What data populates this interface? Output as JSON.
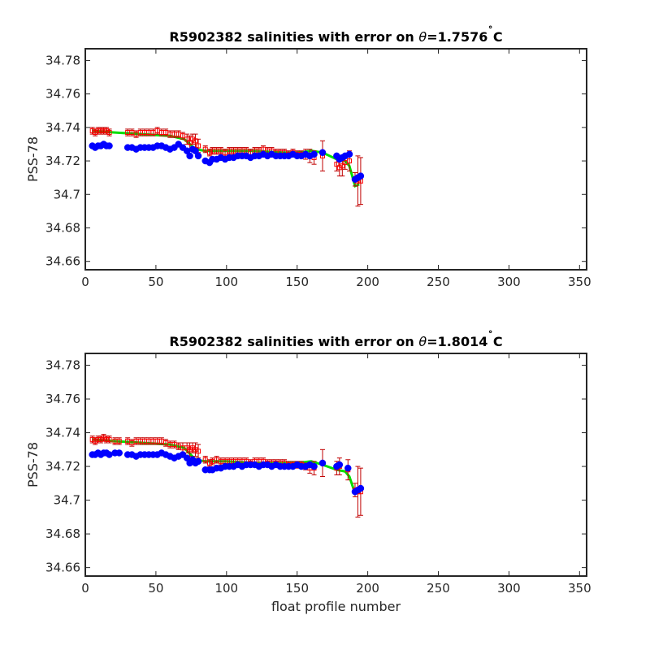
{
  "chart_data": [
    {
      "type": "scatter",
      "title": "R5902382 salinities with error on θ=1.7576˚C",
      "title_parts": {
        "prefix": "R5902382 salinities with error on ",
        "theta": "θ",
        "value": "=1.7576",
        "degree": "˚",
        "unit": "C"
      },
      "xlabel": "",
      "ylabel": "PSS-78",
      "xlim": [
        0,
        355
      ],
      "ylim": [
        34.655,
        34.787
      ],
      "xticks": [
        "0",
        "50",
        "100",
        "150",
        "200",
        "250",
        "300",
        "350"
      ],
      "yticks": [
        "34.66",
        "34.68",
        "34.7",
        "34.72",
        "34.74",
        "34.76",
        "34.78"
      ],
      "grid": false,
      "colors": {
        "calibrated": "#ff0000",
        "error_bar": "#c00000",
        "mapped": "#00e000",
        "float": "#0000ff"
      },
      "series": [
        {
          "role": "float-salinity",
          "x": [
            5,
            7,
            9,
            11,
            13,
            15,
            17,
            30,
            33,
            36,
            39,
            42,
            45,
            48,
            51,
            54,
            57,
            60,
            63,
            66,
            69,
            72,
            74,
            76,
            78,
            80,
            85,
            88,
            90,
            93,
            96,
            99,
            102,
            105,
            108,
            111,
            114,
            117,
            120,
            123,
            126,
            129,
            132,
            135,
            138,
            141,
            144,
            147,
            150,
            153,
            156,
            159,
            162,
            168,
            178,
            180,
            182,
            184,
            187,
            191,
            193,
            195
          ],
          "y": [
            34.729,
            34.728,
            34.729,
            34.729,
            34.73,
            34.729,
            34.729,
            34.728,
            34.728,
            34.727,
            34.728,
            34.728,
            34.728,
            34.728,
            34.729,
            34.729,
            34.728,
            34.727,
            34.728,
            34.73,
            34.728,
            34.726,
            34.723,
            34.727,
            34.726,
            34.723,
            34.72,
            34.719,
            34.721,
            34.721,
            34.722,
            34.721,
            34.722,
            34.722,
            34.723,
            34.723,
            34.723,
            34.722,
            34.723,
            34.723,
            34.724,
            34.723,
            34.724,
            34.723,
            34.723,
            34.723,
            34.723,
            34.724,
            34.723,
            34.723,
            34.724,
            34.723,
            34.724,
            34.725,
            34.723,
            34.721,
            34.722,
            34.723,
            34.724,
            34.709,
            34.71,
            34.711
          ]
        },
        {
          "role": "calibrated-salinity",
          "x": [
            5,
            7,
            9,
            11,
            13,
            15,
            17,
            30,
            33,
            36,
            39,
            42,
            45,
            48,
            51,
            54,
            57,
            60,
            63,
            66,
            69,
            72,
            74,
            76,
            78,
            80,
            85,
            88,
            90,
            93,
            96,
            99,
            102,
            105,
            108,
            111,
            114,
            117,
            120,
            123,
            126,
            129,
            132,
            135,
            138,
            141,
            144,
            147,
            150,
            153,
            156,
            159,
            162,
            168,
            178,
            180,
            182,
            184,
            187,
            191,
            193,
            195
          ],
          "y": [
            34.738,
            34.737,
            34.738,
            34.738,
            34.738,
            34.738,
            34.737,
            34.737,
            34.737,
            34.736,
            34.737,
            34.737,
            34.737,
            34.737,
            34.738,
            34.737,
            34.737,
            34.736,
            34.736,
            34.736,
            34.735,
            34.733,
            34.731,
            34.733,
            34.732,
            34.729,
            34.727,
            34.725,
            34.726,
            34.726,
            34.726,
            34.725,
            34.726,
            34.726,
            34.726,
            34.726,
            34.726,
            34.725,
            34.726,
            34.726,
            34.727,
            34.726,
            34.726,
            34.725,
            34.725,
            34.725,
            34.724,
            34.725,
            34.724,
            34.724,
            34.724,
            34.723,
            34.722,
            34.723,
            34.718,
            34.716,
            34.717,
            34.719,
            34.72,
            34.709,
            34.708,
            34.708
          ],
          "err": [
            0.002,
            0.002,
            0.002,
            0.002,
            0.002,
            0.002,
            0.002,
            0.002,
            0.002,
            0.002,
            0.002,
            0.002,
            0.002,
            0.002,
            0.002,
            0.002,
            0.002,
            0.002,
            0.002,
            0.002,
            0.002,
            0.003,
            0.004,
            0.003,
            0.004,
            0.004,
            0.002,
            0.002,
            0.002,
            0.002,
            0.002,
            0.002,
            0.002,
            0.002,
            0.002,
            0.002,
            0.002,
            0.002,
            0.002,
            0.002,
            0.002,
            0.002,
            0.002,
            0.002,
            0.002,
            0.002,
            0.002,
            0.002,
            0.002,
            0.002,
            0.003,
            0.004,
            0.004,
            0.009,
            0.004,
            0.005,
            0.006,
            0.004,
            0.006,
            0.004,
            0.015,
            0.014
          ]
        },
        {
          "role": "mapped-salinity",
          "x": [
            5,
            20,
            40,
            60,
            70,
            78,
            85,
            100,
            120,
            140,
            150,
            160,
            168,
            178,
            184,
            187,
            191,
            194
          ],
          "y": [
            34.738,
            34.737,
            34.736,
            34.735,
            34.733,
            34.727,
            34.726,
            34.726,
            34.726,
            34.725,
            34.725,
            34.726,
            34.725,
            34.721,
            34.72,
            34.717,
            34.705,
            34.706
          ]
        }
      ]
    },
    {
      "type": "scatter",
      "title": "R5902382 salinities with error on θ=1.8014˚C",
      "title_parts": {
        "prefix": "R5902382 salinities with error on ",
        "theta": "θ",
        "value": "=1.8014",
        "degree": "˚",
        "unit": "C"
      },
      "xlabel": "float profile number",
      "ylabel": "PSS-78",
      "xlim": [
        0,
        355
      ],
      "ylim": [
        34.655,
        34.787
      ],
      "xticks": [
        "0",
        "50",
        "100",
        "150",
        "200",
        "250",
        "300",
        "350"
      ],
      "yticks": [
        "34.66",
        "34.68",
        "34.7",
        "34.72",
        "34.74",
        "34.76",
        "34.78"
      ],
      "grid": false,
      "colors": {
        "calibrated": "#ff0000",
        "error_bar": "#c00000",
        "mapped": "#00e000",
        "float": "#0000ff"
      },
      "series": [
        {
          "role": "float-salinity",
          "x": [
            5,
            7,
            9,
            11,
            13,
            15,
            17,
            21,
            24,
            30,
            33,
            36,
            39,
            42,
            45,
            48,
            51,
            54,
            57,
            60,
            63,
            66,
            69,
            72,
            74,
            76,
            78,
            80,
            85,
            88,
            90,
            93,
            96,
            99,
            102,
            105,
            108,
            111,
            114,
            117,
            120,
            123,
            126,
            129,
            132,
            135,
            138,
            141,
            144,
            147,
            150,
            153,
            156,
            159,
            162,
            168,
            178,
            180,
            186,
            191,
            193,
            195
          ],
          "y": [
            34.727,
            34.727,
            34.728,
            34.727,
            34.728,
            34.728,
            34.727,
            34.728,
            34.728,
            34.727,
            34.727,
            34.726,
            34.727,
            34.727,
            34.727,
            34.727,
            34.727,
            34.728,
            34.727,
            34.726,
            34.725,
            34.726,
            34.727,
            34.725,
            34.722,
            34.724,
            34.722,
            34.723,
            34.718,
            34.718,
            34.718,
            34.719,
            34.719,
            34.72,
            34.72,
            34.72,
            34.721,
            34.72,
            34.721,
            34.721,
            34.721,
            34.72,
            34.721,
            34.721,
            34.72,
            34.721,
            34.72,
            34.72,
            34.72,
            34.72,
            34.721,
            34.72,
            34.72,
            34.721,
            34.72,
            34.722,
            34.72,
            34.721,
            34.719,
            34.705,
            34.706,
            34.707
          ]
        },
        {
          "role": "calibrated-salinity",
          "x": [
            5,
            7,
            9,
            11,
            13,
            15,
            17,
            21,
            24,
            30,
            33,
            36,
            39,
            42,
            45,
            48,
            51,
            54,
            57,
            60,
            63,
            66,
            69,
            72,
            74,
            76,
            78,
            80,
            85,
            88,
            90,
            93,
            96,
            99,
            102,
            105,
            108,
            111,
            114,
            117,
            120,
            123,
            126,
            129,
            132,
            135,
            138,
            141,
            144,
            147,
            150,
            153,
            156,
            159,
            162,
            168,
            178,
            180,
            186,
            191,
            193,
            195
          ],
          "y": [
            34.736,
            34.735,
            34.736,
            34.736,
            34.737,
            34.736,
            34.736,
            34.735,
            34.735,
            34.735,
            34.734,
            34.735,
            34.735,
            34.735,
            34.735,
            34.735,
            34.735,
            34.735,
            34.734,
            34.733,
            34.733,
            34.732,
            34.731,
            34.731,
            34.73,
            34.731,
            34.73,
            34.729,
            34.724,
            34.722,
            34.723,
            34.724,
            34.723,
            34.723,
            34.723,
            34.723,
            34.723,
            34.723,
            34.723,
            34.722,
            34.723,
            34.723,
            34.723,
            34.722,
            34.722,
            34.722,
            34.722,
            34.722,
            34.721,
            34.721,
            34.721,
            34.721,
            34.72,
            34.719,
            34.719,
            34.722,
            34.719,
            34.72,
            34.718,
            34.706,
            34.705,
            34.705
          ],
          "err": [
            0.002,
            0.002,
            0.002,
            0.002,
            0.002,
            0.002,
            0.002,
            0.002,
            0.002,
            0.002,
            0.002,
            0.002,
            0.002,
            0.002,
            0.002,
            0.002,
            0.002,
            0.002,
            0.002,
            0.002,
            0.002,
            0.002,
            0.003,
            0.003,
            0.004,
            0.003,
            0.004,
            0.004,
            0.002,
            0.002,
            0.002,
            0.002,
            0.002,
            0.002,
            0.002,
            0.002,
            0.002,
            0.002,
            0.002,
            0.002,
            0.002,
            0.002,
            0.002,
            0.002,
            0.002,
            0.002,
            0.002,
            0.002,
            0.002,
            0.002,
            0.002,
            0.002,
            0.002,
            0.003,
            0.004,
            0.008,
            0.004,
            0.005,
            0.006,
            0.004,
            0.015,
            0.014
          ]
        },
        {
          "role": "mapped-salinity",
          "x": [
            5,
            20,
            40,
            60,
            70,
            78,
            85,
            100,
            120,
            140,
            150,
            160,
            168,
            178,
            184,
            187,
            191,
            194
          ],
          "y": [
            34.736,
            34.735,
            34.734,
            34.733,
            34.731,
            34.724,
            34.723,
            34.723,
            34.722,
            34.722,
            34.722,
            34.723,
            34.721,
            34.718,
            34.717,
            34.714,
            34.704,
            34.705
          ]
        }
      ]
    }
  ]
}
